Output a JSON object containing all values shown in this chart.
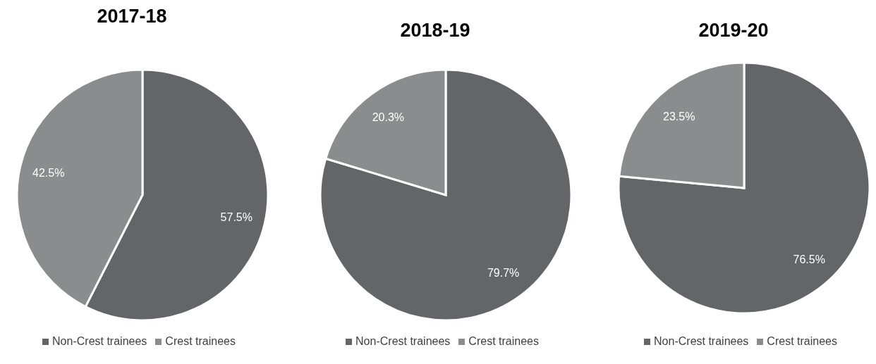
{
  "chart_data": [
    {
      "type": "pie",
      "title": "2017-18",
      "categories": [
        "Non-Crest trainees",
        "Crest trainees"
      ],
      "values": [
        57.5,
        42.5
      ],
      "value_labels": [
        "57.5%",
        "42.5%"
      ],
      "colors": [
        "#636569",
        "#8a8c8e"
      ],
      "legend": "bottom"
    },
    {
      "type": "pie",
      "title": "2018-19",
      "categories": [
        "Non-Crest trainees",
        "Crest trainees"
      ],
      "values": [
        79.7,
        20.3
      ],
      "value_labels": [
        "79.7%",
        "20.3%"
      ],
      "colors": [
        "#636569",
        "#8a8c8e"
      ],
      "legend": "bottom"
    },
    {
      "type": "pie",
      "title": "2019-20",
      "categories": [
        "Non-Crest trainees",
        "Crest trainees"
      ],
      "values": [
        76.5,
        23.5
      ],
      "value_labels": [
        "76.5%",
        "23.5%"
      ],
      "colors": [
        "#636569",
        "#8a8c8e"
      ],
      "legend": "bottom"
    }
  ]
}
